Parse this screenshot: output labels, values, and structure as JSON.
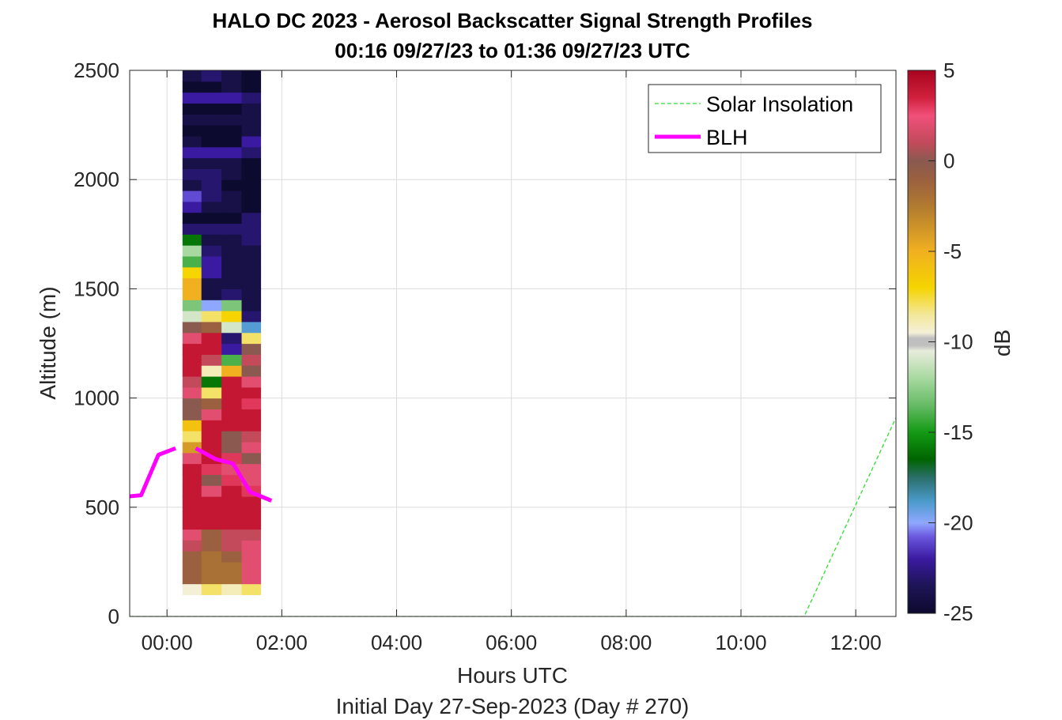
{
  "chart_data": {
    "type": "heatmap",
    "title": "HALO DC 2023 - Aerosol Backscatter Signal Strength Profiles",
    "subtitle": "00:16 09/27/23 to 01:36 09/27/23  UTC",
    "xlabel": "Hours UTC",
    "xlabel2": "Initial Day 27-Sep-2023 (Day # 270)",
    "ylabel": "Altitude (m)",
    "xlim": [
      -0.65,
      12.7
    ],
    "ylim": [
      0,
      2500
    ],
    "xticks": [
      0,
      2,
      4,
      6,
      8,
      10,
      12
    ],
    "xtick_labels": [
      "00:00",
      "02:00",
      "04:00",
      "06:00",
      "08:00",
      "10:00",
      "12:00"
    ],
    "yticks": [
      0,
      500,
      1000,
      1500,
      2000,
      2500
    ],
    "ytick_labels": [
      "0",
      "500",
      "1000",
      "1500",
      "2000",
      "2500"
    ],
    "grid": true,
    "legend_position": "top-right",
    "colorbar": {
      "label": "dB",
      "clim": [
        -25,
        5
      ],
      "ticks": [
        5,
        0,
        -5,
        -10,
        -15,
        -20,
        -25
      ],
      "tick_labels": [
        "5",
        "0",
        "-5",
        "-10",
        "-15",
        "-20",
        "-25"
      ]
    },
    "heatmap": {
      "x_edges": [
        0.27,
        0.6,
        0.95,
        1.3,
        1.63
      ],
      "y_start": 100,
      "y_step": 50,
      "values": [
        [
          -9.5,
          -8,
          -9,
          -8
        ],
        [
          -1,
          -2,
          -2,
          2
        ],
        [
          -1,
          -2,
          -2,
          2
        ],
        [
          -1,
          -2,
          -1,
          2
        ],
        [
          1,
          -1,
          1,
          2
        ],
        [
          2,
          -1,
          1,
          1
        ],
        [
          4,
          4,
          4,
          4
        ],
        [
          4,
          4,
          4,
          4
        ],
        [
          4,
          4,
          4,
          4
        ],
        [
          4,
          2,
          4,
          3
        ],
        [
          4,
          0,
          3,
          2
        ],
        [
          4,
          3,
          2,
          2
        ],
        [
          2,
          4,
          3,
          0
        ],
        [
          -4,
          4,
          0,
          2
        ],
        [
          -8,
          4,
          0,
          1
        ],
        [
          -6,
          4,
          4,
          4
        ],
        [
          0,
          2,
          4,
          4
        ],
        [
          0,
          -1,
          4,
          3
        ],
        [
          2,
          -8,
          4,
          4
        ],
        [
          1,
          -16,
          4,
          2
        ],
        [
          4,
          -9,
          -5,
          0
        ],
        [
          4,
          1,
          -14,
          1
        ],
        [
          4,
          4,
          -22,
          0
        ],
        [
          2,
          4,
          -23,
          -8
        ],
        [
          0,
          -1,
          -11,
          -19
        ],
        [
          -11,
          -8,
          -7,
          -23
        ],
        [
          -13,
          -20,
          -13,
          -24
        ],
        [
          -5,
          -24,
          -23,
          -24
        ],
        [
          -5,
          -24,
          -24,
          -24
        ],
        [
          -7,
          -22,
          -24,
          -24
        ],
        [
          -14,
          -22,
          -24,
          -24
        ],
        [
          -12,
          -23,
          -24,
          -24
        ],
        [
          -16,
          -24,
          -24,
          -23
        ],
        [
          -23,
          -23,
          -23,
          -23
        ],
        [
          -25,
          -25,
          -25,
          -23
        ],
        [
          -22,
          -24,
          -24,
          -25
        ],
        [
          -21,
          -23,
          -24,
          -25
        ],
        [
          -24,
          -23,
          -25,
          -25
        ],
        [
          -23,
          -23,
          -24,
          -25
        ],
        [
          -24,
          -24,
          -24,
          -25
        ],
        [
          -22,
          -22,
          -22,
          -23
        ],
        [
          -24,
          -25,
          -25,
          -22
        ],
        [
          -25,
          -25,
          -25,
          -24
        ],
        [
          -24,
          -24,
          -24,
          -24
        ],
        [
          -25,
          -25,
          -25,
          -24
        ],
        [
          -22,
          -22,
          -22,
          -23
        ],
        [
          -25,
          -25,
          -24,
          -25
        ],
        [
          -24,
          -23,
          -24,
          -25
        ],
        [
          -23,
          -23,
          -24,
          -22
        ],
        [
          -25,
          -25,
          -25,
          -24
        ],
        [
          -25,
          -25,
          -25,
          -25
        ]
      ]
    },
    "series": [
      {
        "name": "Solar Insolation",
        "style": "dashed",
        "color": "#33dd33",
        "x": [
          -0.65,
          11.1,
          12.7
        ],
        "y": [
          0,
          0,
          910
        ]
      },
      {
        "name": "BLH",
        "style": "solid",
        "color": "#ff00ff",
        "segments": [
          {
            "x": [
              -0.65,
              -0.45,
              -0.15,
              0.15
            ],
            "y": [
              550,
              555,
              740,
              770
            ]
          },
          {
            "x": [
              0.5,
              0.85,
              1.15,
              1.45,
              1.82
            ],
            "y": [
              770,
              720,
              700,
              570,
              530
            ]
          }
        ]
      }
    ]
  }
}
